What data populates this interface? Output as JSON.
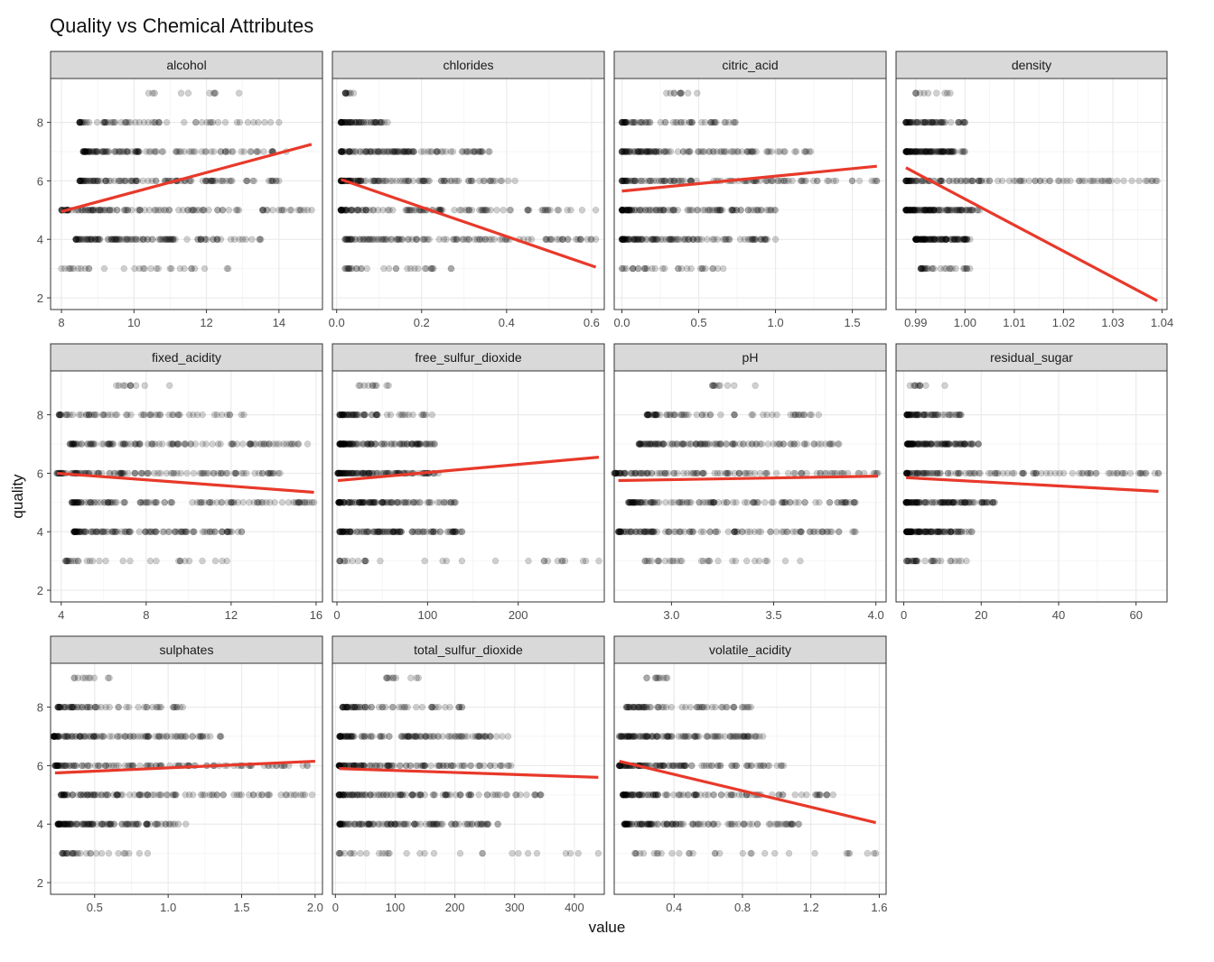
{
  "chart_data": {
    "type": "scatter",
    "title": "Quality vs Chemical Attributes",
    "xlabel": "value",
    "ylabel": "quality",
    "ylim": [
      1.6,
      9.5
    ],
    "yticks": [
      2,
      4,
      6,
      8
    ],
    "quality_levels": [
      3,
      4,
      5,
      6,
      7,
      8,
      9
    ],
    "colors": {
      "points": "#000000",
      "trend": "#e8392a",
      "strip": "#d9d9d9",
      "grid": "#ebebeb"
    },
    "panels": [
      {
        "name": "alcohol",
        "xlim": [
          7.7,
          15.2
        ],
        "xticks": [
          8,
          10,
          12,
          14
        ],
        "ticklabels": [
          "8",
          "10",
          "12",
          "14"
        ],
        "ranges": {
          "3": [
            8.0,
            12.6
          ],
          "4": [
            8.4,
            13.5
          ],
          "5": [
            8.0,
            14.9
          ],
          "6": [
            8.5,
            14.0
          ],
          "7": [
            8.6,
            14.2
          ],
          "8": [
            8.5,
            14.0
          ],
          "9": [
            10.4,
            12.9
          ]
        },
        "trend": [
          [
            8.0,
            4.95
          ],
          [
            14.9,
            7.25
          ]
        ]
      },
      {
        "name": "chlorides",
        "xlim": [
          -0.01,
          0.63
        ],
        "xticks": [
          0.0,
          0.2,
          0.4,
          0.6
        ],
        "ticklabels": [
          "0.0",
          "0.2",
          "0.4",
          "0.6"
        ],
        "ranges": {
          "3": [
            0.02,
            0.27
          ],
          "4": [
            0.02,
            0.61
          ],
          "5": [
            0.01,
            0.61
          ],
          "6": [
            0.01,
            0.42
          ],
          "7": [
            0.01,
            0.36
          ],
          "8": [
            0.01,
            0.12
          ],
          "9": [
            0.02,
            0.04
          ]
        },
        "trend": [
          [
            0.01,
            6.05
          ],
          [
            0.61,
            3.05
          ]
        ]
      },
      {
        "name": "citric_acid",
        "xlim": [
          -0.05,
          1.72
        ],
        "xticks": [
          0.0,
          0.5,
          1.0,
          1.5
        ],
        "ticklabels": [
          "0.0",
          "0.5",
          "1.0",
          "1.5"
        ],
        "ranges": {
          "3": [
            0.0,
            0.66
          ],
          "4": [
            0.0,
            1.0
          ],
          "5": [
            0.0,
            1.0
          ],
          "6": [
            0.0,
            1.66
          ],
          "7": [
            0.0,
            1.23
          ],
          "8": [
            0.0,
            0.74
          ],
          "9": [
            0.29,
            0.49
          ]
        },
        "trend": [
          [
            0.0,
            5.65
          ],
          [
            1.66,
            6.5
          ]
        ]
      },
      {
        "name": "density",
        "xlim": [
          0.986,
          1.041
        ],
        "xticks": [
          0.99,
          1.0,
          1.01,
          1.02,
          1.03,
          1.04
        ],
        "ticklabels": [
          "0.99",
          "1.00",
          "1.01",
          "1.02",
          "1.03",
          "1.04"
        ],
        "ranges": {
          "3": [
            0.991,
            1.001
          ],
          "4": [
            0.99,
            1.001
          ],
          "5": [
            0.988,
            1.003
          ],
          "6": [
            0.988,
            1.039
          ],
          "7": [
            0.988,
            1.0
          ],
          "8": [
            0.988,
            1.0
          ],
          "9": [
            0.99,
            0.997
          ]
        },
        "trend": [
          [
            0.988,
            6.45
          ],
          [
            1.039,
            1.9
          ]
        ]
      },
      {
        "name": "fixed_acidity",
        "xlim": [
          3.5,
          16.3
        ],
        "xticks": [
          4,
          8,
          12,
          16
        ],
        "ticklabels": [
          "4",
          "8",
          "12",
          "16"
        ],
        "ranges": {
          "3": [
            4.2,
            11.8
          ],
          "4": [
            4.6,
            12.5
          ],
          "5": [
            4.5,
            15.9
          ],
          "6": [
            3.8,
            14.3
          ],
          "7": [
            4.4,
            15.6
          ],
          "8": [
            3.9,
            12.6
          ],
          "9": [
            6.6,
            9.1
          ]
        },
        "trend": [
          [
            3.8,
            6.0
          ],
          [
            15.9,
            5.35
          ]
        ]
      },
      {
        "name": "free_sulfur_dioxide",
        "xlim": [
          -5,
          295
        ],
        "xticks": [
          0,
          100,
          200
        ],
        "ticklabels": [
          "0",
          "100",
          "200"
        ],
        "ranges": {
          "3": [
            3,
            289
          ],
          "4": [
            3,
            138
          ],
          "5": [
            2,
            131
          ],
          "6": [
            1,
            112
          ],
          "7": [
            3,
            108
          ],
          "8": [
            3,
            105
          ],
          "9": [
            24,
            57
          ]
        },
        "trend": [
          [
            1,
            5.75
          ],
          [
            289,
            6.55
          ]
        ]
      },
      {
        "name": "pH",
        "xlim": [
          2.72,
          4.05
        ],
        "xticks": [
          3.0,
          3.5,
          4.0
        ],
        "ticklabels": [
          "3.0",
          "3.5",
          "4.0"
        ],
        "ranges": {
          "3": [
            2.87,
            3.63
          ],
          "4": [
            2.74,
            3.9
          ],
          "5": [
            2.79,
            3.9
          ],
          "6": [
            2.72,
            4.01
          ],
          "7": [
            2.84,
            3.82
          ],
          "8": [
            2.88,
            3.72
          ],
          "9": [
            3.2,
            3.41
          ]
        },
        "trend": [
          [
            2.74,
            5.75
          ],
          [
            4.01,
            5.9
          ]
        ]
      },
      {
        "name": "residual_sugar",
        "xlim": [
          -2,
          68
        ],
        "xticks": [
          0,
          20,
          40,
          60
        ],
        "ticklabels": [
          "0",
          "20",
          "40",
          "60"
        ],
        "ranges": {
          "3": [
            0.7,
            16.2
          ],
          "4": [
            0.7,
            17.6
          ],
          "5": [
            0.6,
            23.5
          ],
          "6": [
            0.7,
            65.8
          ],
          "7": [
            0.9,
            19.3
          ],
          "8": [
            0.8,
            14.8
          ],
          "9": [
            1.6,
            10.6
          ]
        },
        "trend": [
          [
            0.6,
            5.85
          ],
          [
            65.8,
            5.38
          ]
        ]
      },
      {
        "name": "sulphates",
        "xlim": [
          0.2,
          2.05
        ],
        "xticks": [
          0.5,
          1.0,
          1.5,
          2.0
        ],
        "ticklabels": [
          "0.5",
          "1.0",
          "1.5",
          "2.0"
        ],
        "ranges": {
          "3": [
            0.28,
            0.86
          ],
          "4": [
            0.25,
            1.12
          ],
          "5": [
            0.27,
            1.98
          ],
          "6": [
            0.23,
            1.95
          ],
          "7": [
            0.22,
            1.36
          ],
          "8": [
            0.25,
            1.1
          ],
          "9": [
            0.36,
            0.6
          ]
        },
        "trend": [
          [
            0.23,
            5.75
          ],
          [
            2.0,
            6.15
          ]
        ]
      },
      {
        "name": "total_sulfur_dioxide",
        "xlim": [
          -5,
          450
        ],
        "xticks": [
          0,
          100,
          200,
          300,
          400
        ],
        "ticklabels": [
          "0",
          "100",
          "200",
          "300",
          "400"
        ],
        "ranges": {
          "3": [
            6,
            440
          ],
          "4": [
            7,
            272
          ],
          "5": [
            6,
            344
          ],
          "6": [
            6,
            294
          ],
          "7": [
            7,
            289
          ],
          "8": [
            12,
            212
          ],
          "9": [
            85,
            139
          ]
        },
        "trend": [
          [
            6,
            5.9
          ],
          [
            440,
            5.6
          ]
        ]
      },
      {
        "name": "volatile_acidity",
        "xlim": [
          0.05,
          1.64
        ],
        "xticks": [
          0.4,
          0.8,
          1.2,
          1.6
        ],
        "ticklabels": [
          "0.4",
          "0.8",
          "1.2",
          "1.6"
        ],
        "ranges": {
          "3": [
            0.17,
            1.58
          ],
          "4": [
            0.11,
            1.13
          ],
          "5": [
            0.1,
            1.33
          ],
          "6": [
            0.08,
            1.04
          ],
          "7": [
            0.08,
            0.92
          ],
          "8": [
            0.12,
            0.85
          ],
          "9": [
            0.24,
            0.36
          ]
        },
        "trend": [
          [
            0.08,
            6.15
          ],
          [
            1.58,
            4.05
          ]
        ]
      }
    ]
  }
}
